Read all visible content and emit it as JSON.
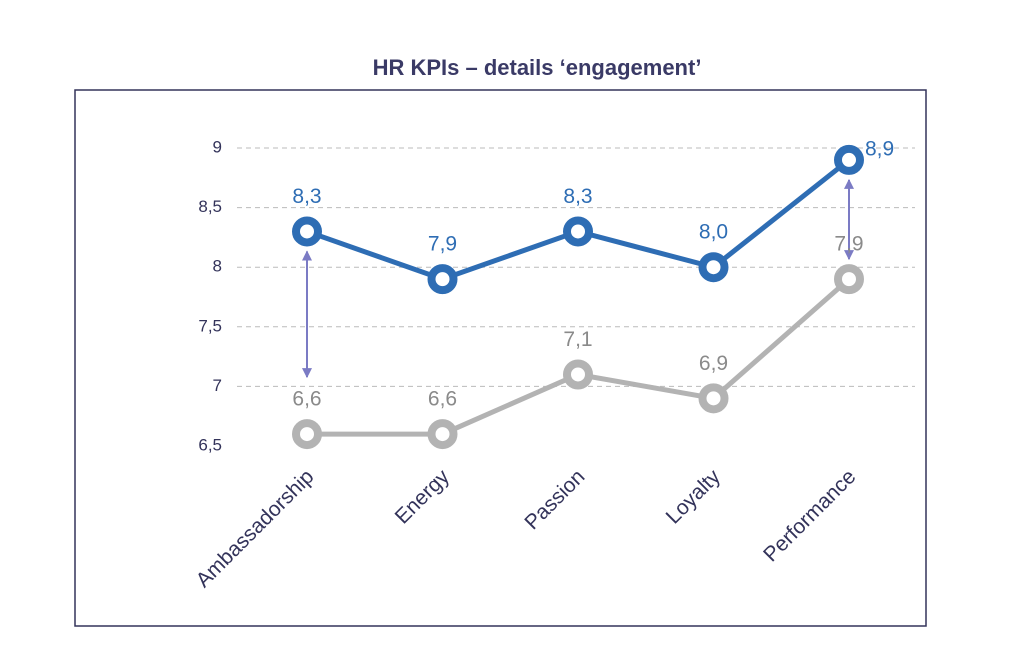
{
  "chart_data": {
    "type": "line",
    "title": "HR KPIs – details ‘engagement’",
    "categories": [
      "Ambassadorship",
      "Energy",
      "Passion",
      "Loyalty",
      "Performance"
    ],
    "series": [
      {
        "color": "#2e6db4",
        "values": [
          8.3,
          7.9,
          8.3,
          8.0,
          8.9
        ],
        "value_labels": [
          "8,3",
          "7,9",
          "8,3",
          "8,0",
          "8,9"
        ]
      },
      {
        "color": "#b3b3b3",
        "values": [
          6.6,
          6.6,
          7.1,
          6.9,
          7.9
        ],
        "value_labels": [
          "6,6",
          "6,6",
          "7,1",
          "6,9",
          "7,9"
        ]
      }
    ],
    "ylim": [
      6.5,
      9
    ],
    "yticks": [
      {
        "value": 6.5,
        "label": "6,5"
      },
      7,
      {
        "value": 7.5,
        "label": "7,5"
      },
      8,
      {
        "value": 8.5,
        "label": "8,5"
      },
      9
    ],
    "grid": true
  }
}
